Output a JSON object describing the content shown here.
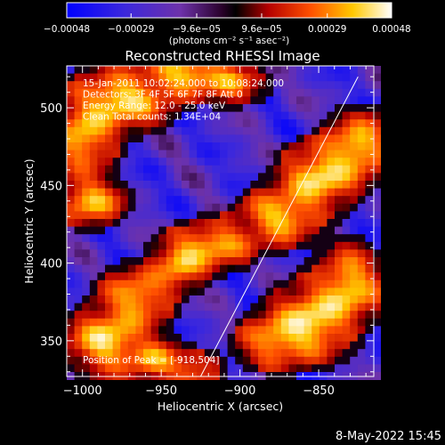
{
  "chart_data": {
    "type": "heatmap",
    "title": "Reconstructed RHESSI Image",
    "xlabel": "Heliocentric X (arcsec)",
    "ylabel": "Heliocentric Y (arcsec)",
    "xlim": [
      -1010,
      -815
    ],
    "ylim": [
      327,
      527
    ],
    "xticks": [
      -1000,
      -950,
      -900,
      -850
    ],
    "yticks": [
      350,
      400,
      450,
      500
    ],
    "xtick_labels": [
      "−1000",
      "−950",
      "−900",
      "−850"
    ],
    "ytick_labels": [
      "350",
      "400",
      "450",
      "500"
    ],
    "colorbar": {
      "range": [
        -0.00048,
        0.00048
      ],
      "ticks": [
        -0.00048,
        -0.00029,
        -9.6e-05,
        9.6e-05,
        0.00029,
        0.00048
      ],
      "tick_labels": [
        "−0.00048",
        "−0.00029",
        "−9.6e−05",
        "9.6e−05",
        "0.00029",
        "0.00048"
      ],
      "units_label": "(photons cm⁻² s⁻¹ asec⁻²)"
    },
    "annotations": [
      "15-Jan-2011 10:02:24.000 to 10:08:24.000",
      "Detectors: 3F 4F 5F 6F 7F 8F  Att 0",
      "Energy Range: 12.0 - 25.0 keV",
      "Clean      Total counts: 1.34E+04"
    ],
    "peak_label": "Position of Peak = [-918,504]",
    "limb_line": {
      "x": [
        -925,
        -825
      ],
      "y": [
        327,
        520
      ]
    },
    "blobs": [
      {
        "x": -1000,
        "y": 480,
        "sx": 12,
        "sy": 13,
        "amp": 0.85
      },
      {
        "x": -975,
        "y": 505,
        "sx": 18,
        "sy": 11,
        "amp": 1.0
      },
      {
        "x": -935,
        "y": 522,
        "sx": 15,
        "sy": 8,
        "amp": 0.9
      },
      {
        "x": -905,
        "y": 516,
        "sx": 12,
        "sy": 8,
        "amp": 0.6
      },
      {
        "x": -995,
        "y": 440,
        "sx": 12,
        "sy": 9,
        "amp": 0.85
      },
      {
        "x": -965,
        "y": 378,
        "sx": 13,
        "sy": 11,
        "amp": 0.8
      },
      {
        "x": -938,
        "y": 400,
        "sx": 10,
        "sy": 10,
        "amp": 0.8
      },
      {
        "x": -915,
        "y": 412,
        "sx": 14,
        "sy": 9,
        "amp": 0.8
      },
      {
        "x": -875,
        "y": 430,
        "sx": 14,
        "sy": 10,
        "amp": 0.9
      },
      {
        "x": -850,
        "y": 455,
        "sx": 14,
        "sy": 12,
        "amp": 1.0
      },
      {
        "x": -825,
        "y": 475,
        "sx": 12,
        "sy": 12,
        "amp": 0.9
      },
      {
        "x": -985,
        "y": 350,
        "sx": 14,
        "sy": 12,
        "amp": 1.0
      },
      {
        "x": -955,
        "y": 338,
        "sx": 10,
        "sy": 8,
        "amp": 0.7
      },
      {
        "x": -930,
        "y": 330,
        "sx": 10,
        "sy": 8,
        "amp": 0.6
      },
      {
        "x": -880,
        "y": 350,
        "sx": 12,
        "sy": 10,
        "amp": 0.7
      },
      {
        "x": -855,
        "y": 362,
        "sx": 14,
        "sy": 14,
        "amp": 1.0
      },
      {
        "x": -830,
        "y": 385,
        "sx": 12,
        "sy": 14,
        "amp": 0.9
      }
    ]
  },
  "footer": {
    "date": "8-May-2022 15:45"
  },
  "colors": {
    "background": "#000000",
    "text": "#ffffff"
  }
}
